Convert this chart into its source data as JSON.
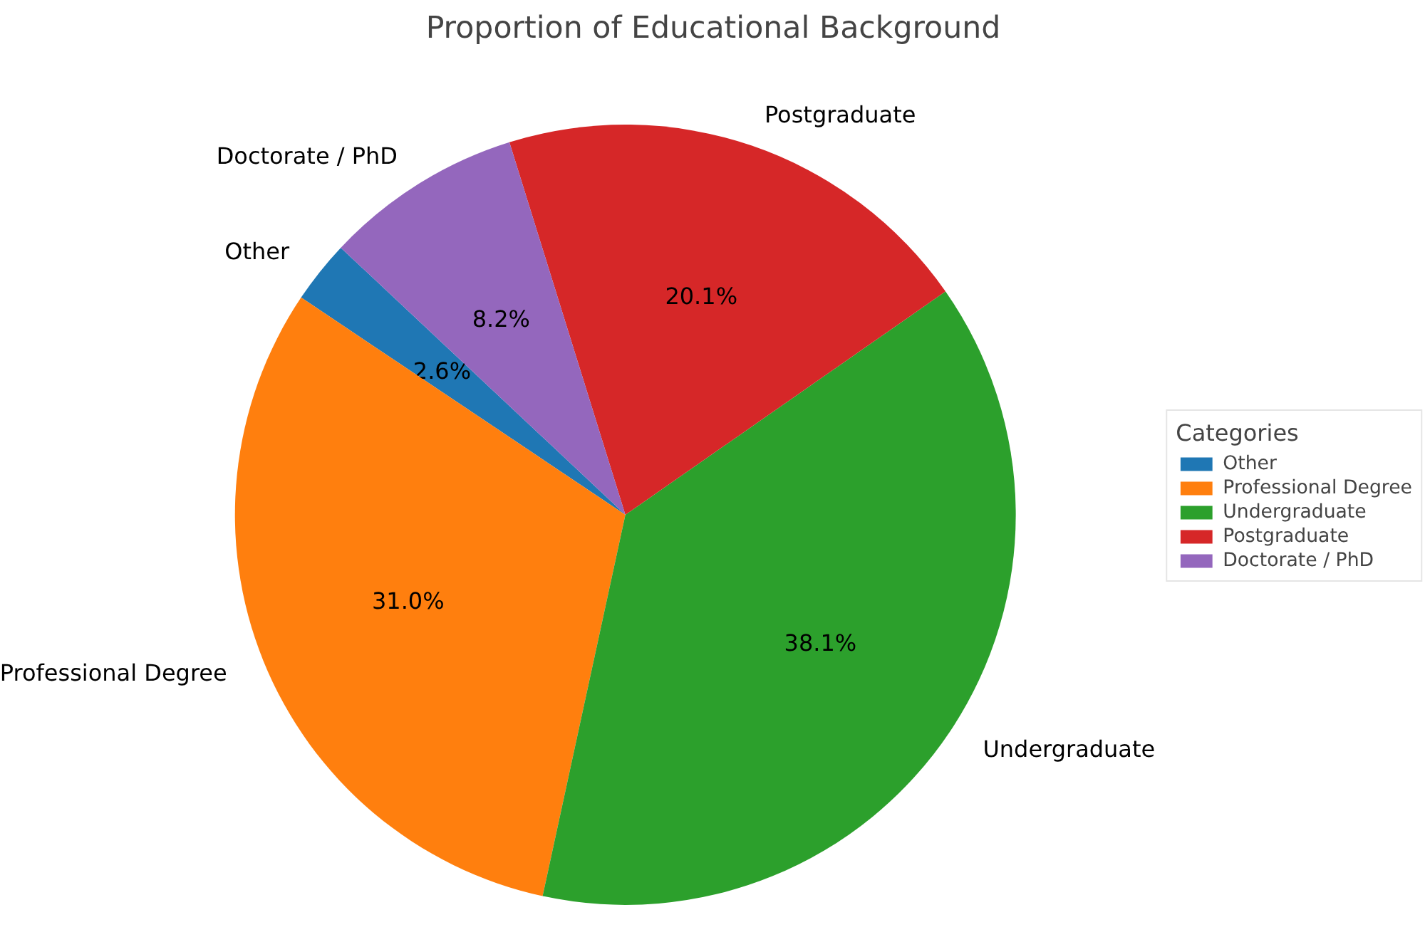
{
  "chart_data": {
    "type": "pie",
    "title": "Proportion of Educational Background",
    "categories": [
      "Other",
      "Professional Degree",
      "Undergraduate",
      "Postgraduate",
      "Doctorate / PhD"
    ],
    "values": [
      2.6,
      31.0,
      38.1,
      20.1,
      8.2
    ],
    "colors": [
      "#1f77b4",
      "#ff7f0e",
      "#2ca02c",
      "#d62728",
      "#9467bd"
    ],
    "value_labels": [
      "2.6%",
      "31.0%",
      "38.1%",
      "20.1%",
      "8.2%"
    ],
    "legend_title": "Categories",
    "legend": "right"
  }
}
